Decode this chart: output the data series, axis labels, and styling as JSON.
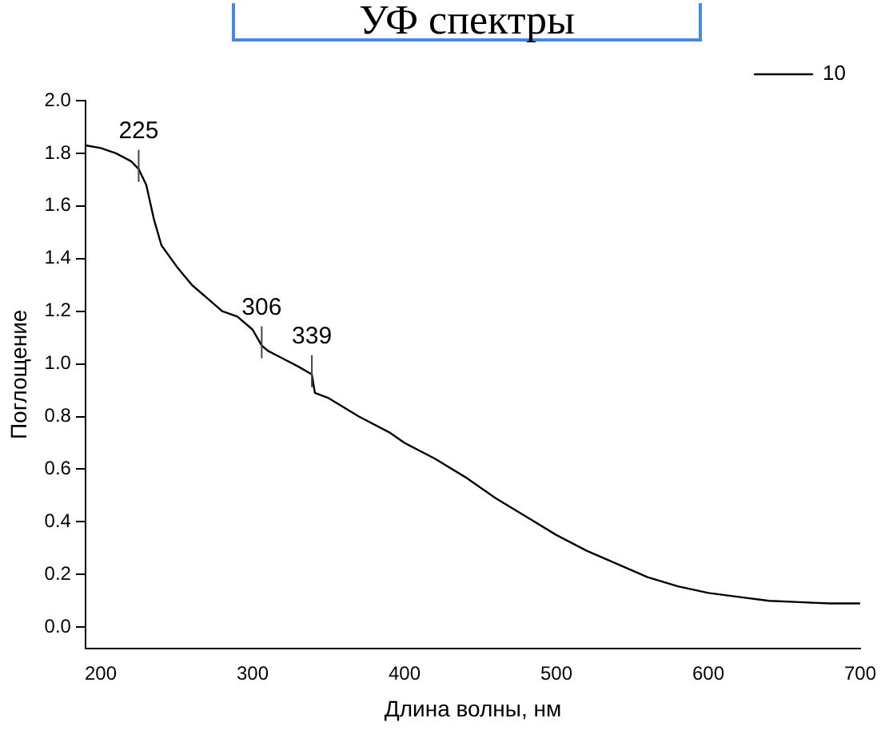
{
  "chart_data": {
    "type": "line",
    "title": "УФ спектры",
    "xlabel": "Длина волны, нм",
    "ylabel": "Поглощение",
    "x": [
      190,
      200,
      210,
      220,
      225,
      230,
      235,
      240,
      250,
      260,
      270,
      280,
      290,
      300,
      306,
      310,
      320,
      330,
      339,
      341,
      350,
      370,
      390,
      400,
      420,
      440,
      460,
      480,
      500,
      520,
      540,
      560,
      580,
      600,
      620,
      640,
      660,
      680,
      700
    ],
    "series": [
      {
        "name": "10",
        "color": "#000000",
        "values": [
          1.83,
          1.82,
          1.8,
          1.77,
          1.74,
          1.68,
          1.55,
          1.45,
          1.37,
          1.3,
          1.25,
          1.2,
          1.18,
          1.13,
          1.07,
          1.05,
          1.02,
          0.99,
          0.96,
          0.89,
          0.87,
          0.8,
          0.74,
          0.7,
          0.64,
          0.57,
          0.49,
          0.42,
          0.35,
          0.29,
          0.24,
          0.19,
          0.155,
          0.13,
          0.115,
          0.1,
          0.095,
          0.09,
          0.09
        ]
      }
    ],
    "annotations": [
      {
        "text": "225",
        "x": 225,
        "y": 1.74
      },
      {
        "text": "306",
        "x": 306,
        "y": 1.07
      },
      {
        "text": "339",
        "x": 339,
        "y": 0.96
      }
    ],
    "xlim": [
      190,
      700
    ],
    "xticks": [
      200,
      300,
      400,
      500,
      600,
      700
    ],
    "ylim": [
      -0.08,
      2.0
    ],
    "yticks": [
      {
        "value": 0,
        "label": "0.0"
      },
      0.2,
      0.4,
      0.6,
      0.8,
      {
        "value": 1,
        "label": "1.0"
      },
      1.2,
      1.4,
      1.6,
      1.8,
      {
        "value": 2,
        "label": "2.0"
      }
    ],
    "grid": false,
    "legend": "top right",
    "marker": "none",
    "line_style": "solid"
  }
}
